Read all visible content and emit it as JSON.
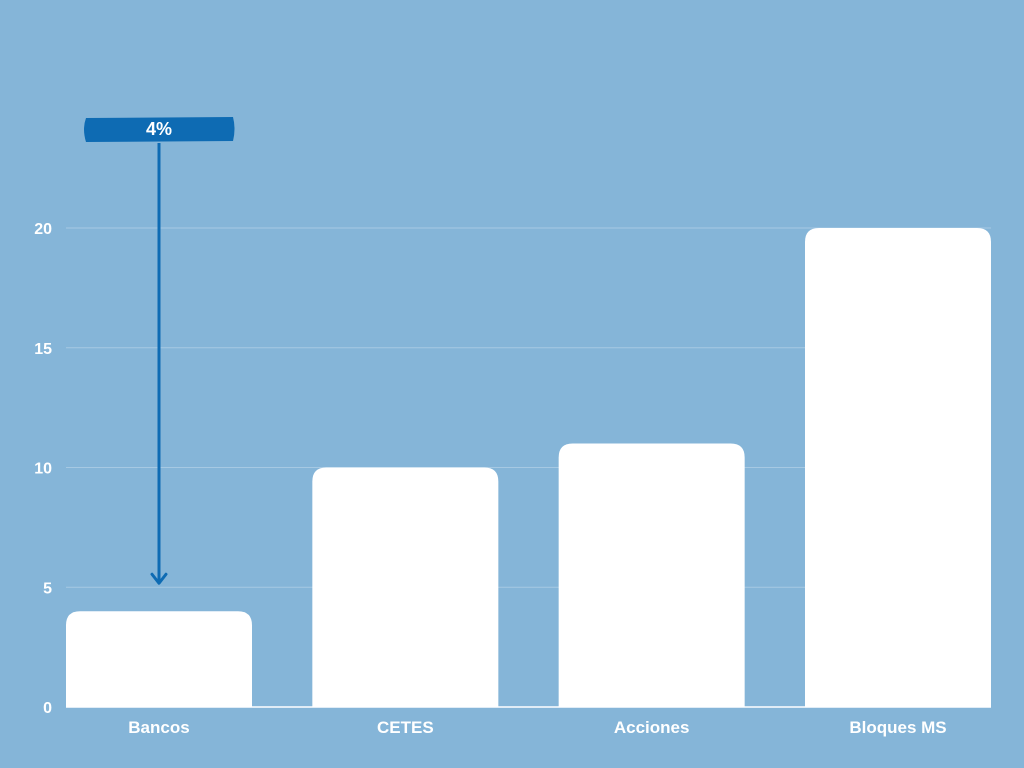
{
  "chart_data": {
    "type": "bar",
    "categories": [
      "Bancos",
      "CETES",
      "Acciones",
      "Bloques MS"
    ],
    "values": [
      4,
      10,
      11,
      20
    ],
    "y_ticks": [
      "0",
      "5",
      "10",
      "15",
      "20"
    ],
    "ylim": [
      0,
      20
    ],
    "grid": true,
    "annotation": {
      "text": "4%",
      "category": "Bancos",
      "target_value": 5
    },
    "colors": {
      "background": "#85b5d8",
      "bar": "#ffffff",
      "gridline": "#a6c9e3",
      "callout": "#0e6bb3"
    }
  }
}
